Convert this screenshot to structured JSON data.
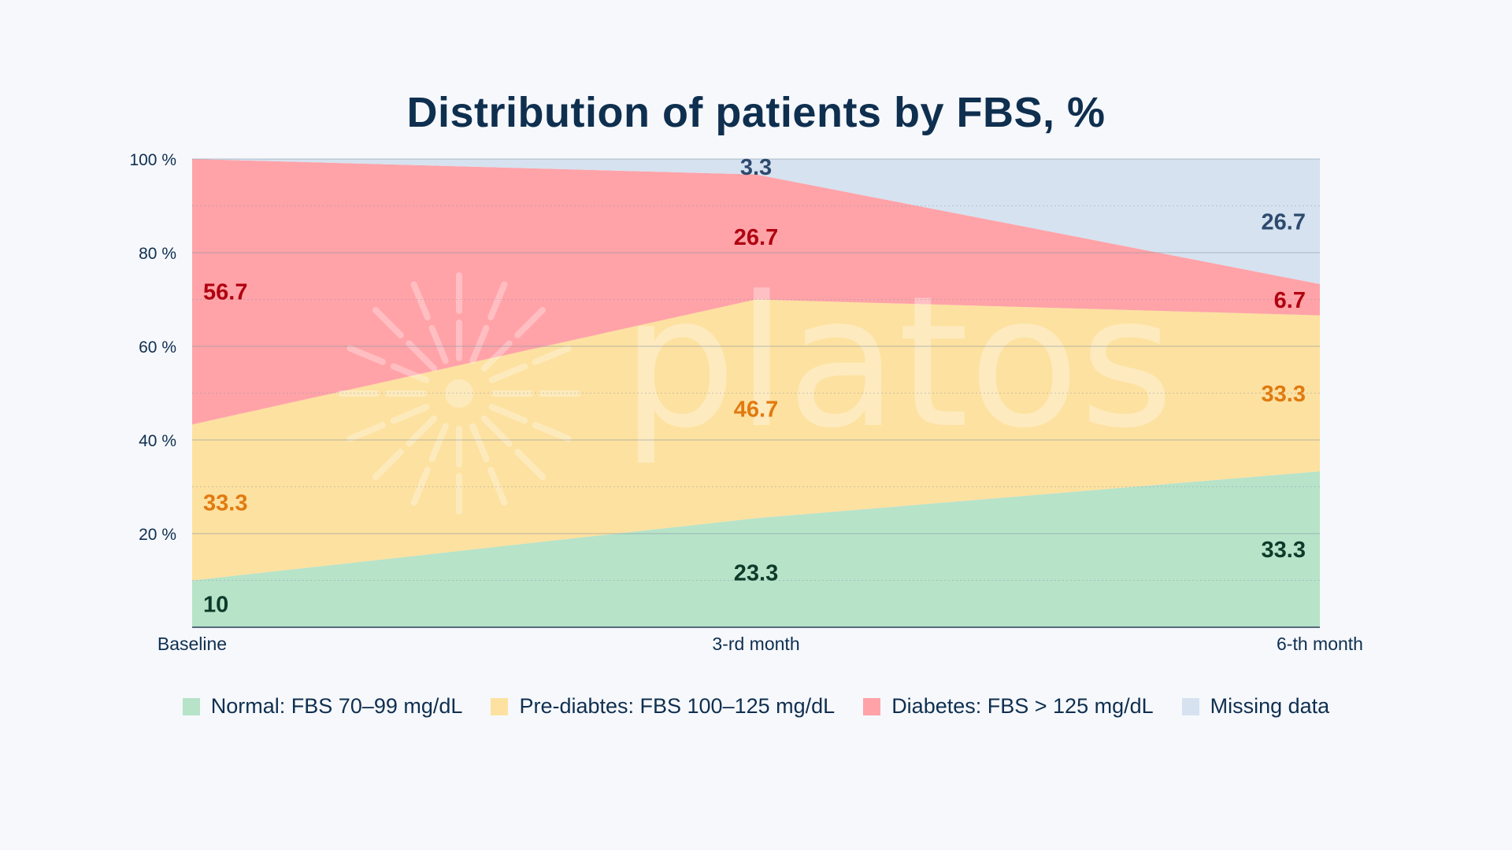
{
  "chart_data": {
    "type": "area",
    "stacked": true,
    "title": "Distribution of patients by FBS, %",
    "x": [
      "Baseline",
      "3-rd month",
      "6-th month"
    ],
    "y_ticks": [
      "20 %",
      "40 %",
      "60 %",
      "80 %",
      "100 %"
    ],
    "ylim": [
      0,
      100
    ],
    "grid": true,
    "legend_position": "bottom",
    "watermark": "platos",
    "series": [
      {
        "name": "Normal: FBS 70–99 mg/dL",
        "values": [
          10,
          23.3,
          33.3
        ],
        "labels": [
          "10",
          "23.3",
          "33.3"
        ],
        "color": "#b7e3c9",
        "label_color": "#0d3b2a"
      },
      {
        "name": "Pre-diabtes: FBS 100–125 mg/dL",
        "values": [
          33.3,
          46.7,
          33.3
        ],
        "labels": [
          "33.3",
          "46.7",
          "33.3"
        ],
        "color": "#fde1a0",
        "label_color": "#e07a10"
      },
      {
        "name": "Diabetes: FBS > 125 mg/dL",
        "values": [
          56.7,
          26.7,
          6.7
        ],
        "labels": [
          "56.7",
          "26.7",
          "6.7"
        ],
        "color": "#ffa3a8",
        "label_color": "#b00010"
      },
      {
        "name": "Missing data",
        "values": [
          0,
          3.3,
          26.7
        ],
        "labels": [
          "",
          "3.3",
          "26.7"
        ],
        "color": "#d6e2f0",
        "label_color": "#2d4a6e"
      }
    ]
  }
}
